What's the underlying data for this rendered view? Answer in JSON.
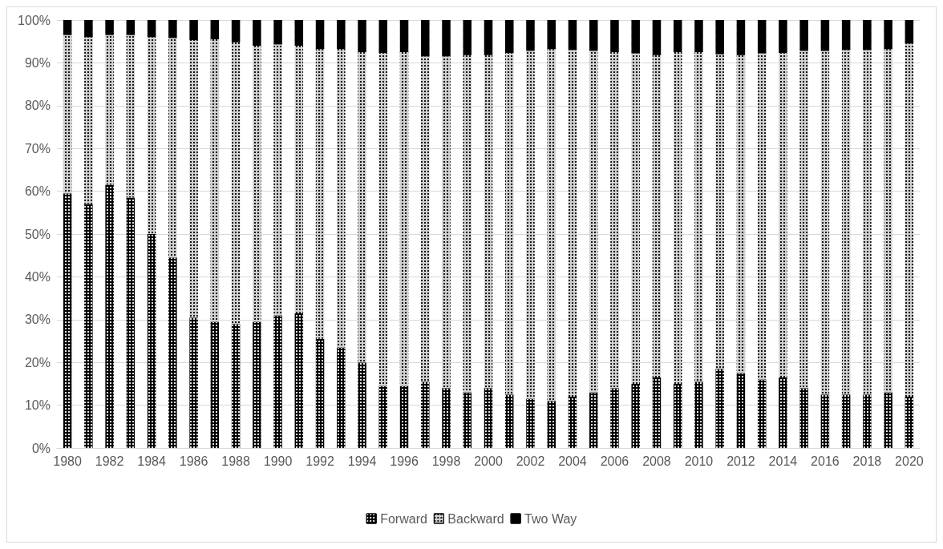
{
  "chart_data": {
    "type": "bar",
    "stacked": true,
    "categories": [
      "1980",
      null,
      "1982",
      null,
      "1984",
      null,
      "1986",
      null,
      "1988",
      null,
      "1990",
      null,
      "1992",
      null,
      "1994",
      null,
      "1996",
      null,
      "1998",
      null,
      "2000",
      null,
      "2002",
      null,
      "2004",
      null,
      "2006",
      null,
      "2008",
      null,
      "2010",
      null,
      "2012",
      null,
      "2014",
      null,
      "2016",
      null,
      "2018",
      null,
      "2020"
    ],
    "series": [
      {
        "name": "Forward",
        "color": "#000000",
        "values": [
          59.5,
          57,
          61.5,
          58.5,
          50,
          44.5,
          30.5,
          29.5,
          29,
          29.5,
          31,
          31.5,
          25.5,
          23.5,
          20,
          14.5,
          14.5,
          15.5,
          14,
          13,
          14,
          12.5,
          11.5,
          11,
          12,
          13,
          14,
          15,
          16.5,
          15,
          15.5,
          18.5,
          17.5,
          16,
          16.5,
          14,
          12.5,
          12.5,
          12.5,
          13,
          12
        ]
      },
      {
        "name": "Backward",
        "color": "#d0d0d0",
        "values": [
          37,
          39,
          35,
          38,
          46,
          51.3,
          64.8,
          66,
          65.8,
          64.5,
          63.3,
          62.5,
          67.7,
          69.7,
          72.5,
          77.8,
          78,
          76,
          77.5,
          78.8,
          77.8,
          79.8,
          81.3,
          82.2,
          81,
          79.8,
          78.5,
          77.2,
          75.3,
          77.5,
          77,
          73.5,
          74.3,
          76.2,
          75.8,
          78.8,
          80.3,
          80.5,
          80.5,
          80.2,
          82.5
        ]
      },
      {
        "name": "Two Way",
        "color": "#000000",
        "values": [
          3.5,
          4,
          3.5,
          3.5,
          4,
          4.2,
          4.7,
          4.5,
          5.2,
          6,
          5.7,
          6,
          6.8,
          6.8,
          7.5,
          7.7,
          7.5,
          8.5,
          8.5,
          8.2,
          8.2,
          7.7,
          7.2,
          6.8,
          7,
          7.2,
          7.5,
          7.8,
          8.2,
          7.5,
          7.5,
          8,
          8.2,
          7.8,
          7.7,
          7.2,
          7.2,
          7,
          7,
          6.8,
          5.5
        ]
      }
    ],
    "ylim": [
      0,
      100
    ],
    "yticks": [
      {
        "value": 0,
        "label": "0%"
      },
      {
        "value": 10,
        "label": "10%"
      },
      {
        "value": 20,
        "label": "20%"
      },
      {
        "value": 30,
        "label": "30%"
      },
      {
        "value": 40,
        "label": "40%"
      },
      {
        "value": 50,
        "label": "50%"
      },
      {
        "value": 60,
        "label": "60%"
      },
      {
        "value": 70,
        "label": "70%"
      },
      {
        "value": 80,
        "label": "80%"
      },
      {
        "value": 90,
        "label": "90%"
      },
      {
        "value": 100,
        "label": "100%"
      }
    ],
    "grid": "y",
    "legend": "bottom"
  }
}
